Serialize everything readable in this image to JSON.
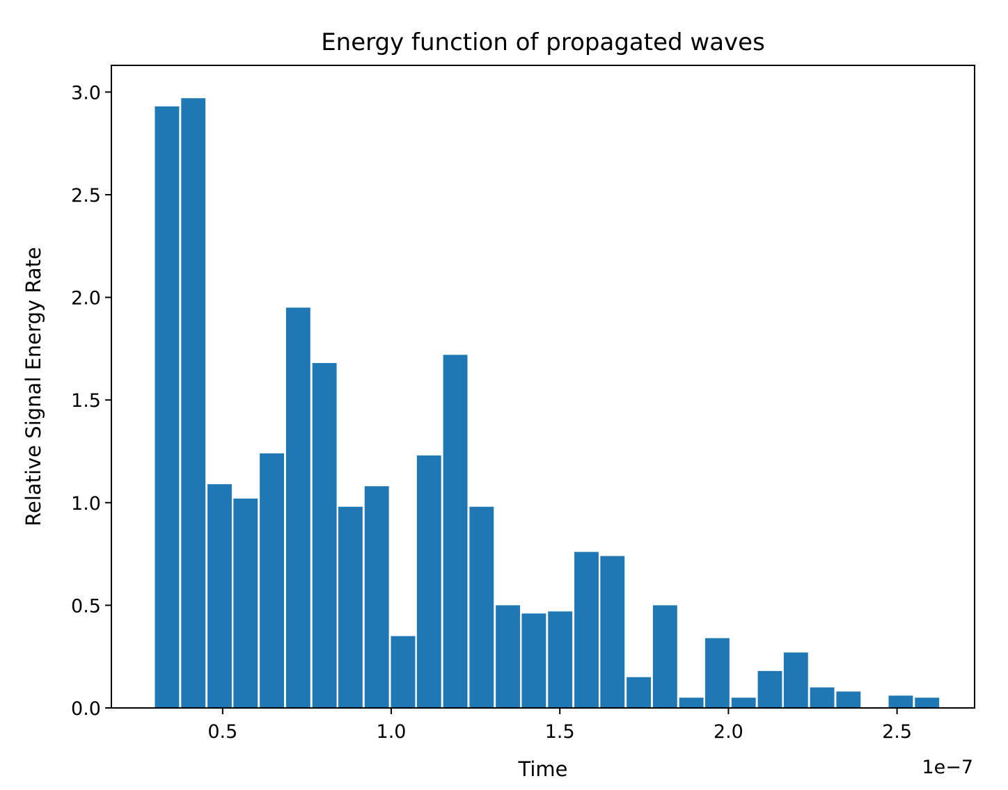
{
  "chart_data": {
    "type": "bar",
    "title": "Energy function of propagated waves",
    "xlabel": "Time",
    "ylabel": "Relative Signal Energy Rate",
    "x_offset_label": "1e−7",
    "xlim": [
      0.17,
      2.73
    ],
    "ylim": [
      0.0,
      3.13
    ],
    "bar_width": 0.072,
    "x": [
      0.335,
      0.413,
      0.491,
      0.568,
      0.646,
      0.724,
      0.802,
      0.879,
      0.957,
      1.035,
      1.112,
      1.19,
      1.268,
      1.346,
      1.423,
      1.501,
      1.579,
      1.656,
      1.734,
      1.812,
      1.89,
      1.967,
      2.045,
      2.123,
      2.2,
      2.278,
      2.356,
      2.433,
      2.511,
      2.589
    ],
    "values": [
      2.93,
      2.97,
      1.09,
      1.02,
      1.24,
      1.95,
      1.68,
      0.98,
      1.08,
      0.35,
      1.23,
      1.72,
      0.98,
      0.5,
      0.46,
      0.47,
      0.76,
      0.74,
      0.15,
      0.5,
      0.05,
      0.34,
      0.05,
      0.18,
      0.27,
      0.1,
      0.08,
      0.0,
      0.06,
      0.05
    ],
    "bar_color": "#1f77b4",
    "x_ticks": [
      {
        "value": 0.5,
        "label": "0.5"
      },
      {
        "value": 1.0,
        "label": "1.0"
      },
      {
        "value": 1.5,
        "label": "1.5"
      },
      {
        "value": 2.0,
        "label": "2.0"
      },
      {
        "value": 2.5,
        "label": "2.5"
      }
    ],
    "y_ticks": [
      {
        "value": 0.0,
        "label": "0.0"
      },
      {
        "value": 0.5,
        "label": "0.5"
      },
      {
        "value": 1.0,
        "label": "1.0"
      },
      {
        "value": 1.5,
        "label": "1.5"
      },
      {
        "value": 2.0,
        "label": "2.0"
      },
      {
        "value": 2.5,
        "label": "2.5"
      },
      {
        "value": 3.0,
        "label": "3.0"
      }
    ],
    "grid": false,
    "legend": "none"
  }
}
